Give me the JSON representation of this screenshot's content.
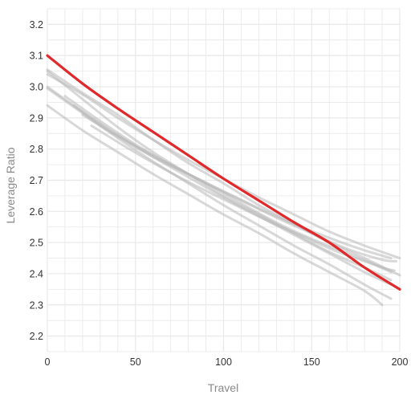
{
  "chart_data": {
    "type": "line",
    "title": "",
    "xlabel": "Travel",
    "ylabel": "Leverage Ratio",
    "xlim": [
      0,
      200
    ],
    "ylim": [
      2.15,
      3.25
    ],
    "x_ticks": [
      0,
      50,
      100,
      150,
      200
    ],
    "y_ticks": [
      2.2,
      2.3,
      2.4,
      2.5,
      2.6,
      2.7,
      2.8,
      2.9,
      3.0,
      3.1,
      3.2
    ],
    "grid": true,
    "legend": "none",
    "colors": {
      "highlight": "#e0292b",
      "background_series": "#b8b8b8",
      "grid": "#e8e8e8"
    },
    "highlight_series": {
      "x": [
        0,
        20,
        40,
        60,
        80,
        100,
        120,
        140,
        160,
        180,
        200
      ],
      "y": [
        3.1,
        3.01,
        2.93,
        2.855,
        2.78,
        2.705,
        2.635,
        2.565,
        2.5,
        2.42,
        2.35
      ]
    },
    "background_series": [
      {
        "x": [
          0,
          20,
          40,
          60,
          80,
          100,
          120,
          140,
          160,
          180,
          200
        ],
        "y": [
          3.055,
          2.98,
          2.91,
          2.83,
          2.755,
          2.69,
          2.62,
          2.56,
          2.5,
          2.45,
          2.395
        ]
      },
      {
        "x": [
          0,
          20,
          40,
          60,
          80,
          100,
          120,
          140,
          160,
          180,
          195
        ],
        "y": [
          3.05,
          2.96,
          2.87,
          2.79,
          2.72,
          2.65,
          2.59,
          2.53,
          2.47,
          2.42,
          2.38
        ]
      },
      {
        "x": [
          0,
          20,
          40,
          60,
          80,
          100,
          120,
          140,
          160,
          180,
          195
        ],
        "y": [
          3.0,
          2.92,
          2.845,
          2.775,
          2.71,
          2.645,
          2.585,
          2.525,
          2.465,
          2.405,
          2.365
        ]
      },
      {
        "x": [
          0,
          20,
          40,
          60,
          80,
          100,
          120,
          140,
          160,
          180,
          195
        ],
        "y": [
          2.995,
          2.915,
          2.835,
          2.76,
          2.69,
          2.62,
          2.555,
          2.49,
          2.43,
          2.365,
          2.32
        ]
      },
      {
        "x": [
          0,
          20,
          40,
          60,
          80,
          100,
          120,
          140,
          160,
          180,
          190
        ],
        "y": [
          2.94,
          2.86,
          2.79,
          2.72,
          2.655,
          2.59,
          2.53,
          2.465,
          2.405,
          2.345,
          2.3
        ]
      },
      {
        "x": [
          0,
          20,
          40,
          60,
          80,
          100,
          120,
          140,
          160,
          180,
          200
        ],
        "y": [
          3.04,
          2.975,
          2.9,
          2.83,
          2.765,
          2.705,
          2.645,
          2.59,
          2.535,
          2.49,
          2.45
        ]
      },
      {
        "x": [
          10,
          30,
          50,
          70,
          90,
          110,
          130,
          150,
          170,
          190,
          198
        ],
        "y": [
          2.97,
          2.89,
          2.815,
          2.75,
          2.69,
          2.635,
          2.58,
          2.53,
          2.48,
          2.445,
          2.44
        ]
      },
      {
        "x": [
          15,
          35,
          55,
          75,
          95,
          115,
          135,
          155,
          175,
          190,
          197
        ],
        "y": [
          2.94,
          2.86,
          2.795,
          2.735,
          2.675,
          2.61,
          2.55,
          2.5,
          2.455,
          2.42,
          2.41
        ]
      },
      {
        "x": [
          20,
          40,
          60,
          80,
          100,
          120,
          140,
          160,
          180,
          195
        ],
        "y": [
          2.91,
          2.84,
          2.775,
          2.72,
          2.665,
          2.61,
          2.56,
          2.515,
          2.475,
          2.45
        ]
      },
      {
        "x": [
          25,
          45,
          65,
          85,
          105,
          125,
          145,
          165,
          185,
          195
        ],
        "y": [
          2.875,
          2.805,
          2.74,
          2.68,
          2.625,
          2.57,
          2.52,
          2.47,
          2.43,
          2.405
        ]
      }
    ]
  }
}
